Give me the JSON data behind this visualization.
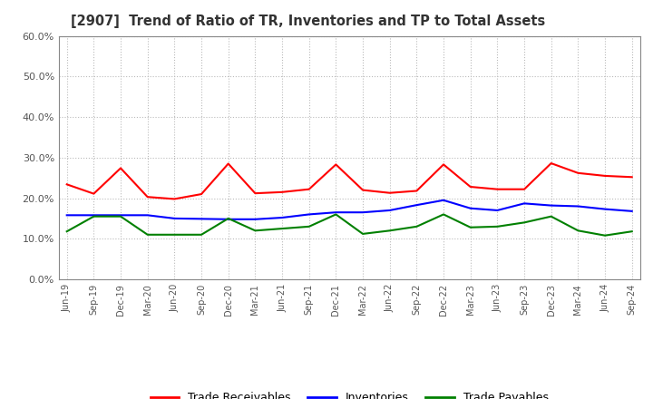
{
  "title": "[2907]  Trend of Ratio of TR, Inventories and TP to Total Assets",
  "x_labels": [
    "Jun-19",
    "Sep-19",
    "Dec-19",
    "Mar-20",
    "Jun-20",
    "Sep-20",
    "Dec-20",
    "Mar-21",
    "Jun-21",
    "Sep-21",
    "Dec-21",
    "Mar-22",
    "Jun-22",
    "Sep-22",
    "Dec-22",
    "Mar-23",
    "Jun-23",
    "Sep-23",
    "Dec-23",
    "Mar-24",
    "Jun-24",
    "Sep-24"
  ],
  "trade_receivables": [
    0.234,
    0.211,
    0.274,
    0.203,
    0.198,
    0.21,
    0.285,
    0.212,
    0.215,
    0.222,
    0.283,
    0.22,
    0.213,
    0.218,
    0.283,
    0.228,
    0.222,
    0.222,
    0.286,
    0.262,
    0.255,
    0.252
  ],
  "inventories": [
    0.158,
    0.158,
    0.158,
    0.158,
    0.15,
    0.149,
    0.148,
    0.148,
    0.152,
    0.16,
    0.165,
    0.165,
    0.17,
    0.183,
    0.195,
    0.175,
    0.17,
    0.187,
    0.182,
    0.18,
    0.173,
    0.168
  ],
  "trade_payables": [
    0.118,
    0.155,
    0.155,
    0.11,
    0.11,
    0.11,
    0.15,
    0.12,
    0.125,
    0.13,
    0.16,
    0.112,
    0.12,
    0.13,
    0.16,
    0.128,
    0.13,
    0.14,
    0.155,
    0.12,
    0.108,
    0.118
  ],
  "tr_color": "#FF0000",
  "inv_color": "#0000FF",
  "tp_color": "#008000",
  "ylim": [
    0.0,
    0.6
  ],
  "yticks": [
    0.0,
    0.1,
    0.2,
    0.3,
    0.4,
    0.5,
    0.6
  ],
  "background_color": "#FFFFFF",
  "grid_color": "#BBBBBB",
  "title_color": "#333333",
  "tick_color": "#555555",
  "legend_labels": [
    "Trade Receivables",
    "Inventories",
    "Trade Payables"
  ],
  "linewidth": 1.5
}
